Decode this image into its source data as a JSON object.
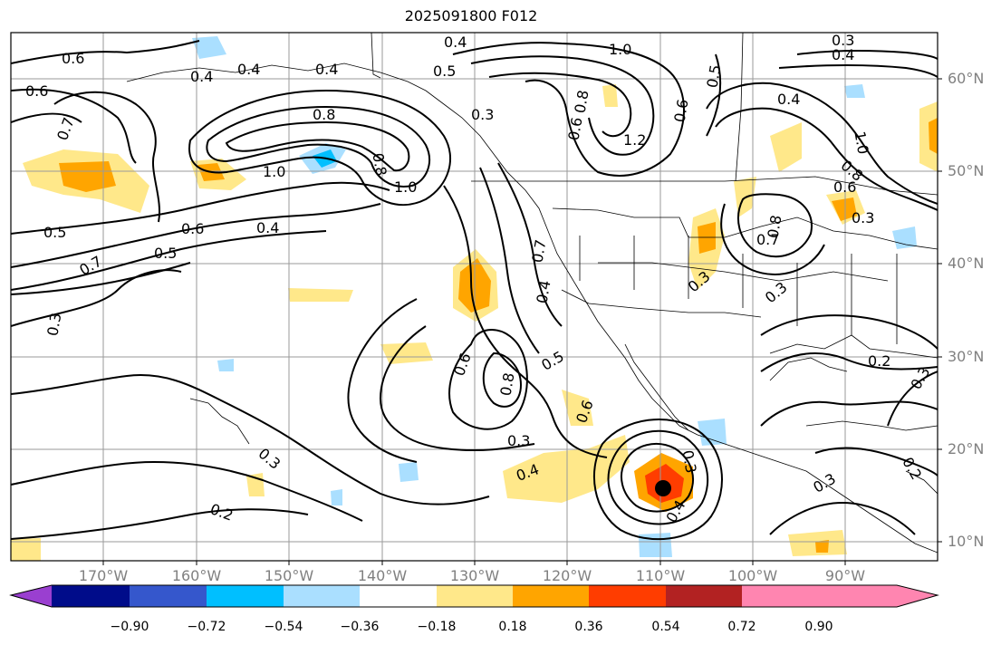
{
  "title": "2025091800 F012",
  "lat_labels": [
    "60°N",
    "50°N",
    "40°N",
    "30°N",
    "20°N",
    "10°N"
  ],
  "lon_labels": [
    "170°W",
    "160°W",
    "150°W",
    "140°W",
    "130°W",
    "120°W",
    "110°W",
    "100°W",
    "90°W"
  ],
  "colorbar": {
    "ticks": [
      "−0.90",
      "−0.72",
      "−0.54",
      "−0.36",
      "−0.18",
      "0.18",
      "0.36",
      "0.54",
      "0.72",
      "0.90"
    ],
    "colors": [
      "#9a3fd0",
      "#000c8a",
      "#3557cc",
      "#00bfff",
      "#aadfff",
      "#ffffff",
      "#ffe88a",
      "#ffa500",
      "#ff3d00",
      "#b22222",
      "#ff85b0"
    ]
  },
  "contour_labels": [
    "0.6",
    "0.6",
    "0.7",
    "0.5",
    "0.7",
    "0.3",
    "0.4",
    "0.4",
    "0.4",
    "0.8",
    "1.0",
    "0.6",
    "0.5",
    "0.4",
    "1.0",
    "0.4",
    "0.5",
    "0.3",
    "1.0",
    "1.2",
    "0.8",
    "0.6",
    "0.5",
    "0.6",
    "0.4",
    "0.3",
    "0.4",
    "1.0",
    "0.8",
    "0.7",
    "0.8",
    "0.6",
    "0.8",
    "0.3",
    "0.3",
    "0.4",
    "0.5",
    "0.7",
    "0.8",
    "0.6",
    "0.6",
    "0.3",
    "0.4",
    "0.3",
    "0.4",
    "0.3",
    "0.3",
    "0.2",
    "0.2",
    "0.3",
    "0.2",
    "0.3"
  ]
}
